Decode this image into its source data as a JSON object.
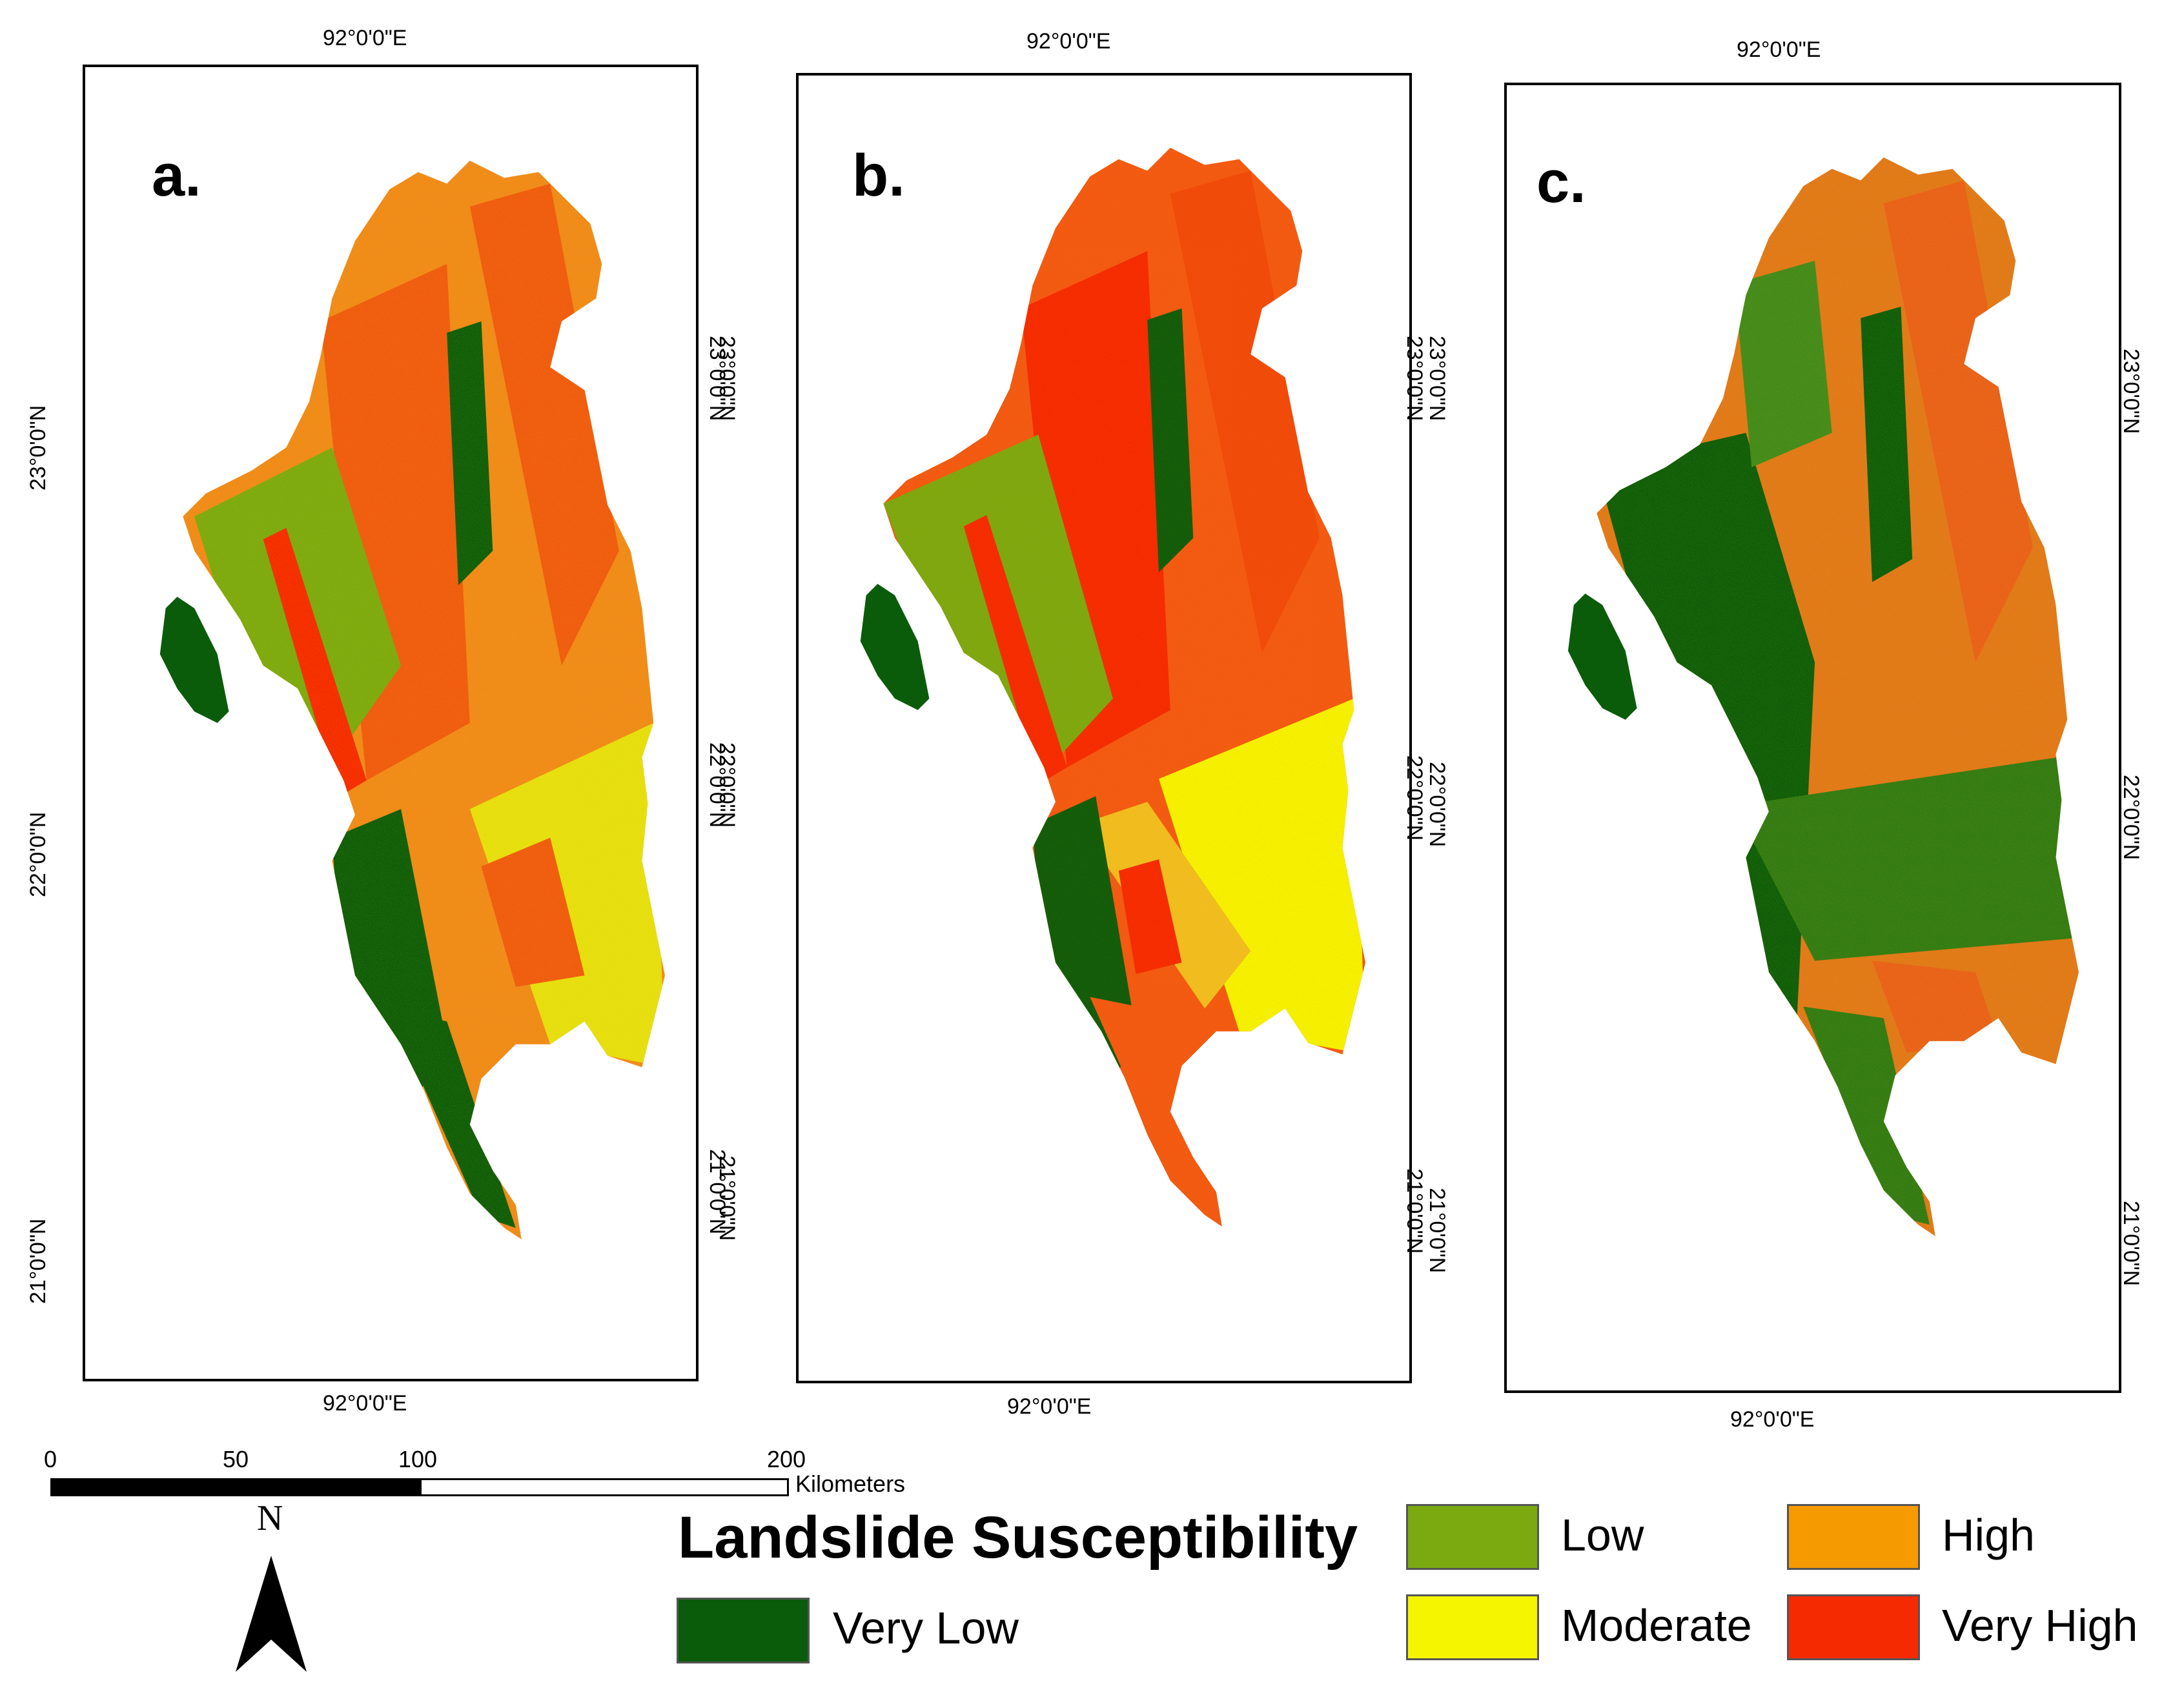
{
  "map": {
    "coordinate_labels": {
      "longitude": "92°0'0\"E",
      "lat_23": "23°0'0\"N",
      "lat_22": "22°0'0\"N",
      "lat_21": "21°0'0\"N"
    },
    "panels": [
      {
        "id": "a",
        "label": "a."
      },
      {
        "id": "b",
        "label": "b."
      },
      {
        "id": "c",
        "label": "c."
      }
    ],
    "scale_bar": {
      "ticks": [
        "0",
        "50",
        "100",
        "200"
      ],
      "unit": "Kilometers"
    },
    "north_arrow": {
      "label": "N",
      "icon": "north-arrow-icon"
    },
    "legend": {
      "title": "Landslide Susceptibility",
      "classes": [
        {
          "label": "Very Low",
          "color": "#0a5c0a"
        },
        {
          "label": "Low",
          "color": "#7aaa10"
        },
        {
          "label": "Moderate",
          "color": "#f5f500"
        },
        {
          "label": "High",
          "color": "#f59a00"
        },
        {
          "label": "Very High",
          "color": "#f52a00"
        }
      ]
    }
  }
}
